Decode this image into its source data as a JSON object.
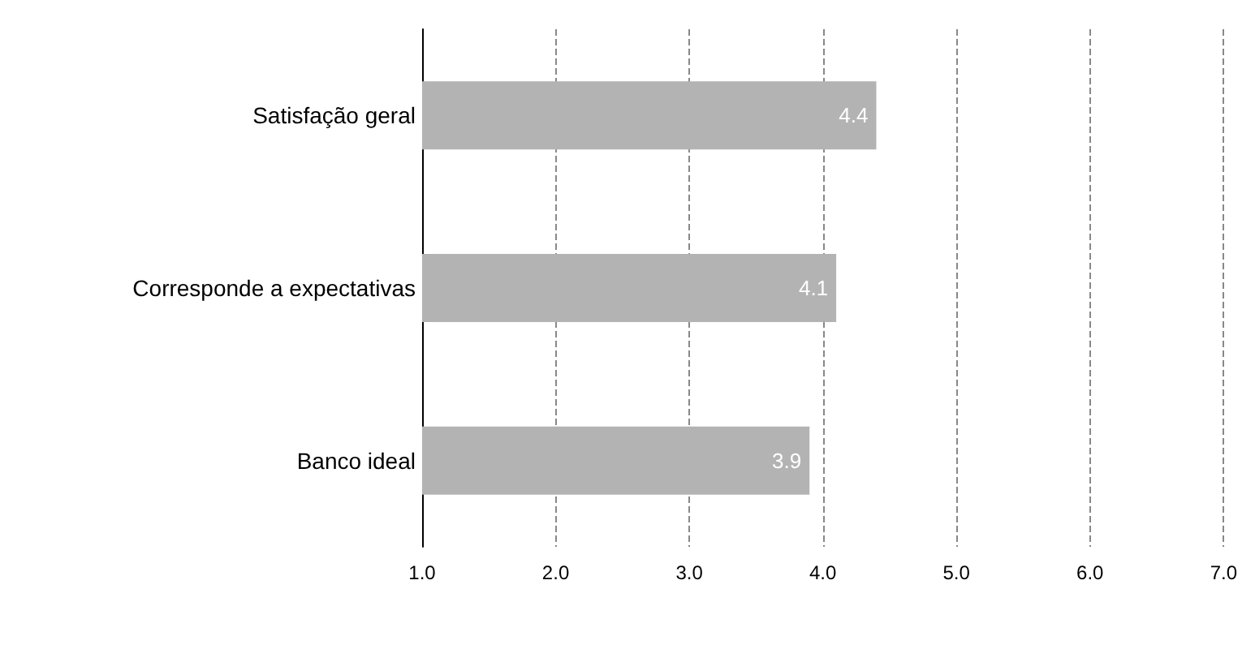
{
  "chart_data": {
    "type": "bar",
    "orientation": "horizontal",
    "categories": [
      "Satisfação geral",
      "Corresponde a expectativas",
      "Banco ideal"
    ],
    "values": [
      4.4,
      4.1,
      3.9
    ],
    "color": "#b3b3b3",
    "data_labels": true,
    "xlim": [
      1,
      7
    ],
    "xticks": [
      {
        "value": 1,
        "label": "1.0"
      },
      {
        "value": 2,
        "label": "2.0"
      },
      {
        "value": 3,
        "label": "3.0"
      },
      {
        "value": 4,
        "label": "4.0"
      },
      {
        "value": 5,
        "label": "5.0"
      },
      {
        "value": 6,
        "label": "6.0"
      },
      {
        "value": 7,
        "label": "7.0"
      }
    ],
    "grid": "x"
  }
}
